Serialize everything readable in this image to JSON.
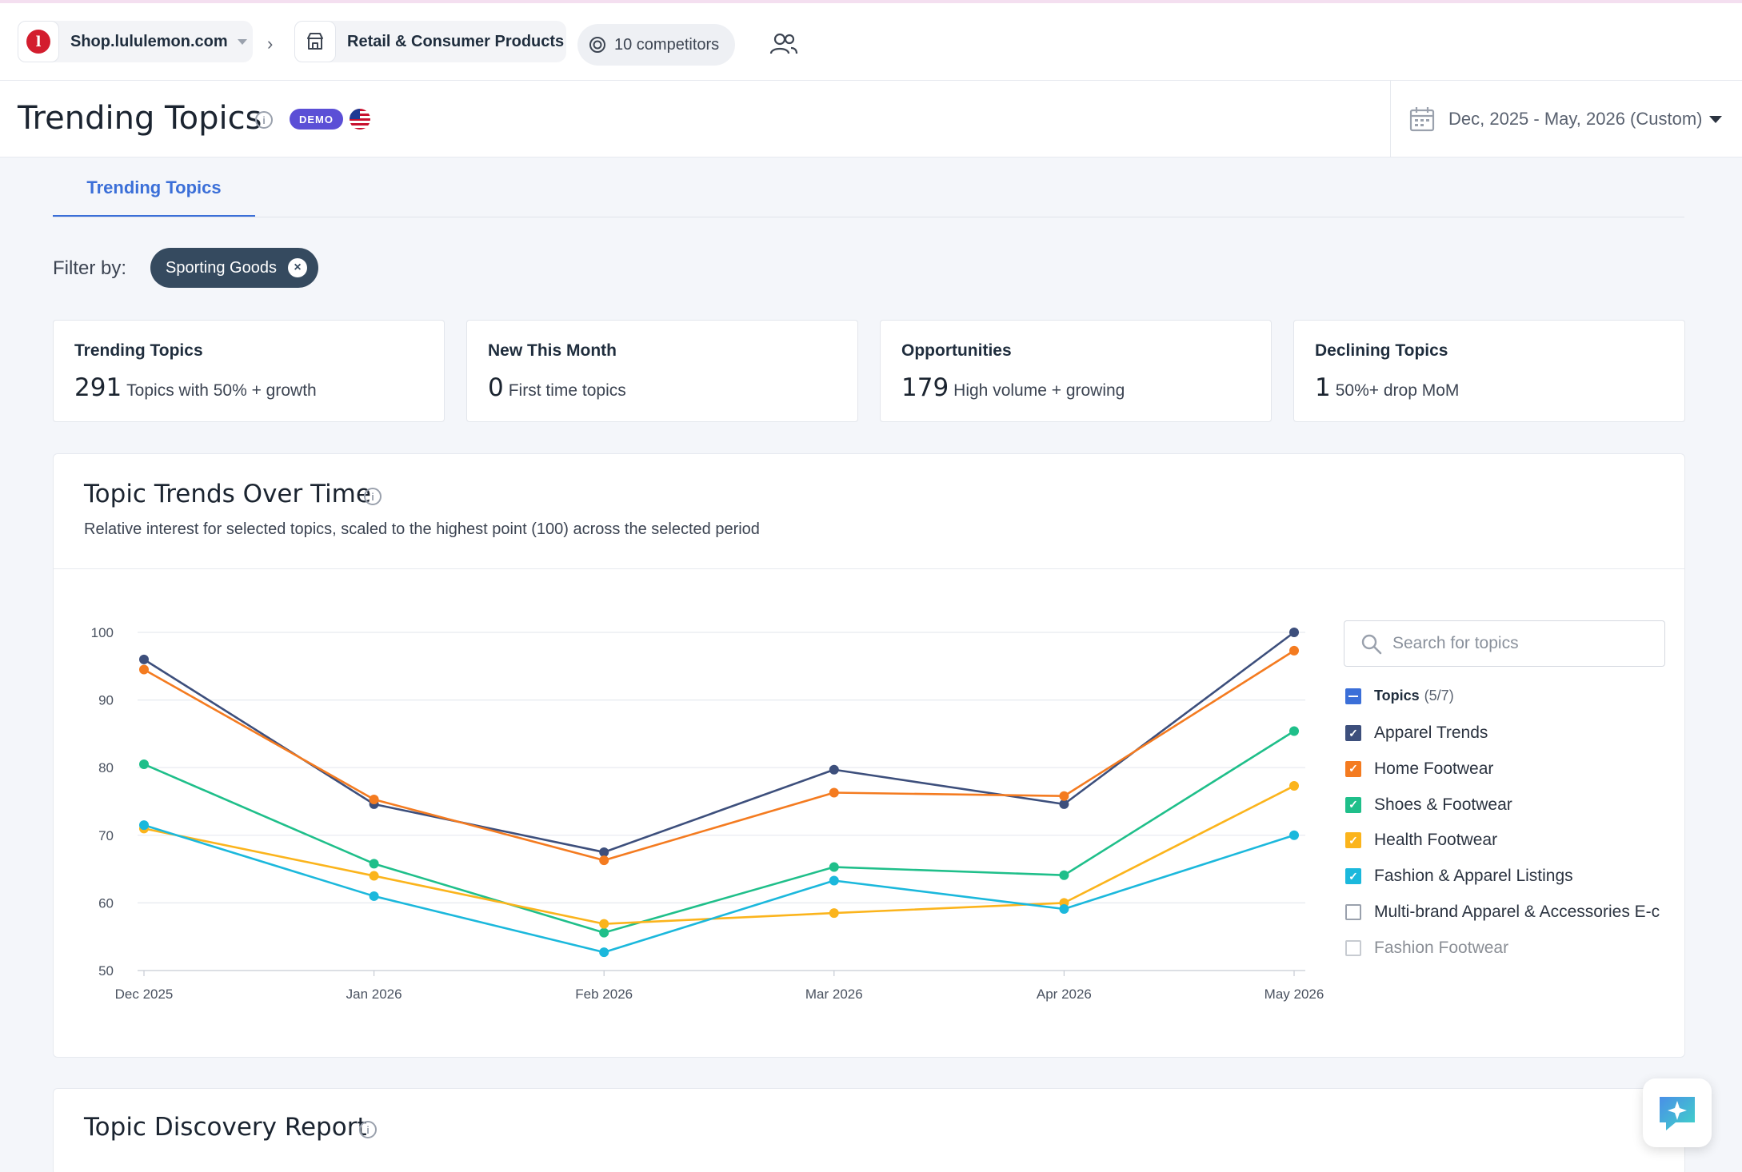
{
  "topbar": {
    "site": "Shop.lululemon.com",
    "logo_letter": "l",
    "category": "Retail & Consumer Products",
    "competitors": "10 competitors"
  },
  "header": {
    "title": "Trending Topics",
    "badge": "DEMO",
    "date_range": "Dec, 2025 - May, 2026 (Custom)"
  },
  "tabs": [
    {
      "label": "Trending Topics",
      "active": true
    }
  ],
  "filter": {
    "label": "Filter by:",
    "chip": "Sporting Goods",
    "chip_close": "×"
  },
  "cards": [
    {
      "title": "Trending Topics",
      "value": "291",
      "desc": "Topics with 50% + growth"
    },
    {
      "title": "New This Month",
      "value": "0",
      "desc": "First time topics"
    },
    {
      "title": "Opportunities",
      "value": "179",
      "desc": "High volume + growing"
    },
    {
      "title": "Declining Topics",
      "value": "1",
      "desc": "50%+ drop MoM"
    }
  ],
  "chart_panel": {
    "title": "Topic Trends Over Time",
    "subtitle": "Relative interest for selected topics, scaled to the highest point (100) across the selected period",
    "search_placeholder": "Search for topics",
    "legend_title": "Topics",
    "legend_count": "(5/7)",
    "legend": [
      {
        "name": "Apparel Trends",
        "checked": true,
        "color": "#3d4f7c"
      },
      {
        "name": "Home Footwear",
        "checked": true,
        "color": "#f47b20"
      },
      {
        "name": "Shoes & Footwear",
        "checked": true,
        "color": "#1fbf8a"
      },
      {
        "name": "Health Footwear",
        "checked": true,
        "color": "#fbb41c"
      },
      {
        "name": "Fashion & Apparel Listings",
        "checked": true,
        "color": "#1bb8dc"
      },
      {
        "name": "Multi-brand Apparel & Accessories E-c",
        "checked": false,
        "color": "#9aa1ad"
      },
      {
        "name": "Fashion Footwear",
        "checked": false,
        "color": "#9aa1ad"
      }
    ]
  },
  "chart_data": {
    "type": "line",
    "categories": [
      "Dec 2025",
      "Jan 2026",
      "Feb 2026",
      "Mar 2026",
      "Apr 2026",
      "May 2026"
    ],
    "ylim": [
      50,
      100
    ],
    "yticks": [
      100,
      90,
      80,
      70,
      60,
      50
    ],
    "grid": true,
    "legend_position": "right",
    "series": [
      {
        "name": "Apparel Trends",
        "color": "#3d4f7c",
        "values": [
          96,
          74.6,
          67.5,
          79.7,
          74.6,
          100
        ]
      },
      {
        "name": "Home Footwear",
        "color": "#f47b20",
        "values": [
          94.5,
          75.3,
          66.3,
          76.3,
          75.8,
          97.3
        ]
      },
      {
        "name": "Shoes & Footwear",
        "color": "#1fbf8a",
        "values": [
          80.5,
          65.8,
          55.6,
          65.3,
          64.1,
          85.4
        ]
      },
      {
        "name": "Health Footwear",
        "color": "#fbb41c",
        "values": [
          71,
          64,
          56.9,
          58.5,
          60,
          77.3
        ]
      },
      {
        "name": "Fashion & Apparel Listings",
        "color": "#1bb8dc",
        "values": [
          71.5,
          61,
          52.7,
          63.3,
          59.1,
          70
        ]
      }
    ]
  },
  "discovery": {
    "title": "Topic Discovery Report"
  }
}
